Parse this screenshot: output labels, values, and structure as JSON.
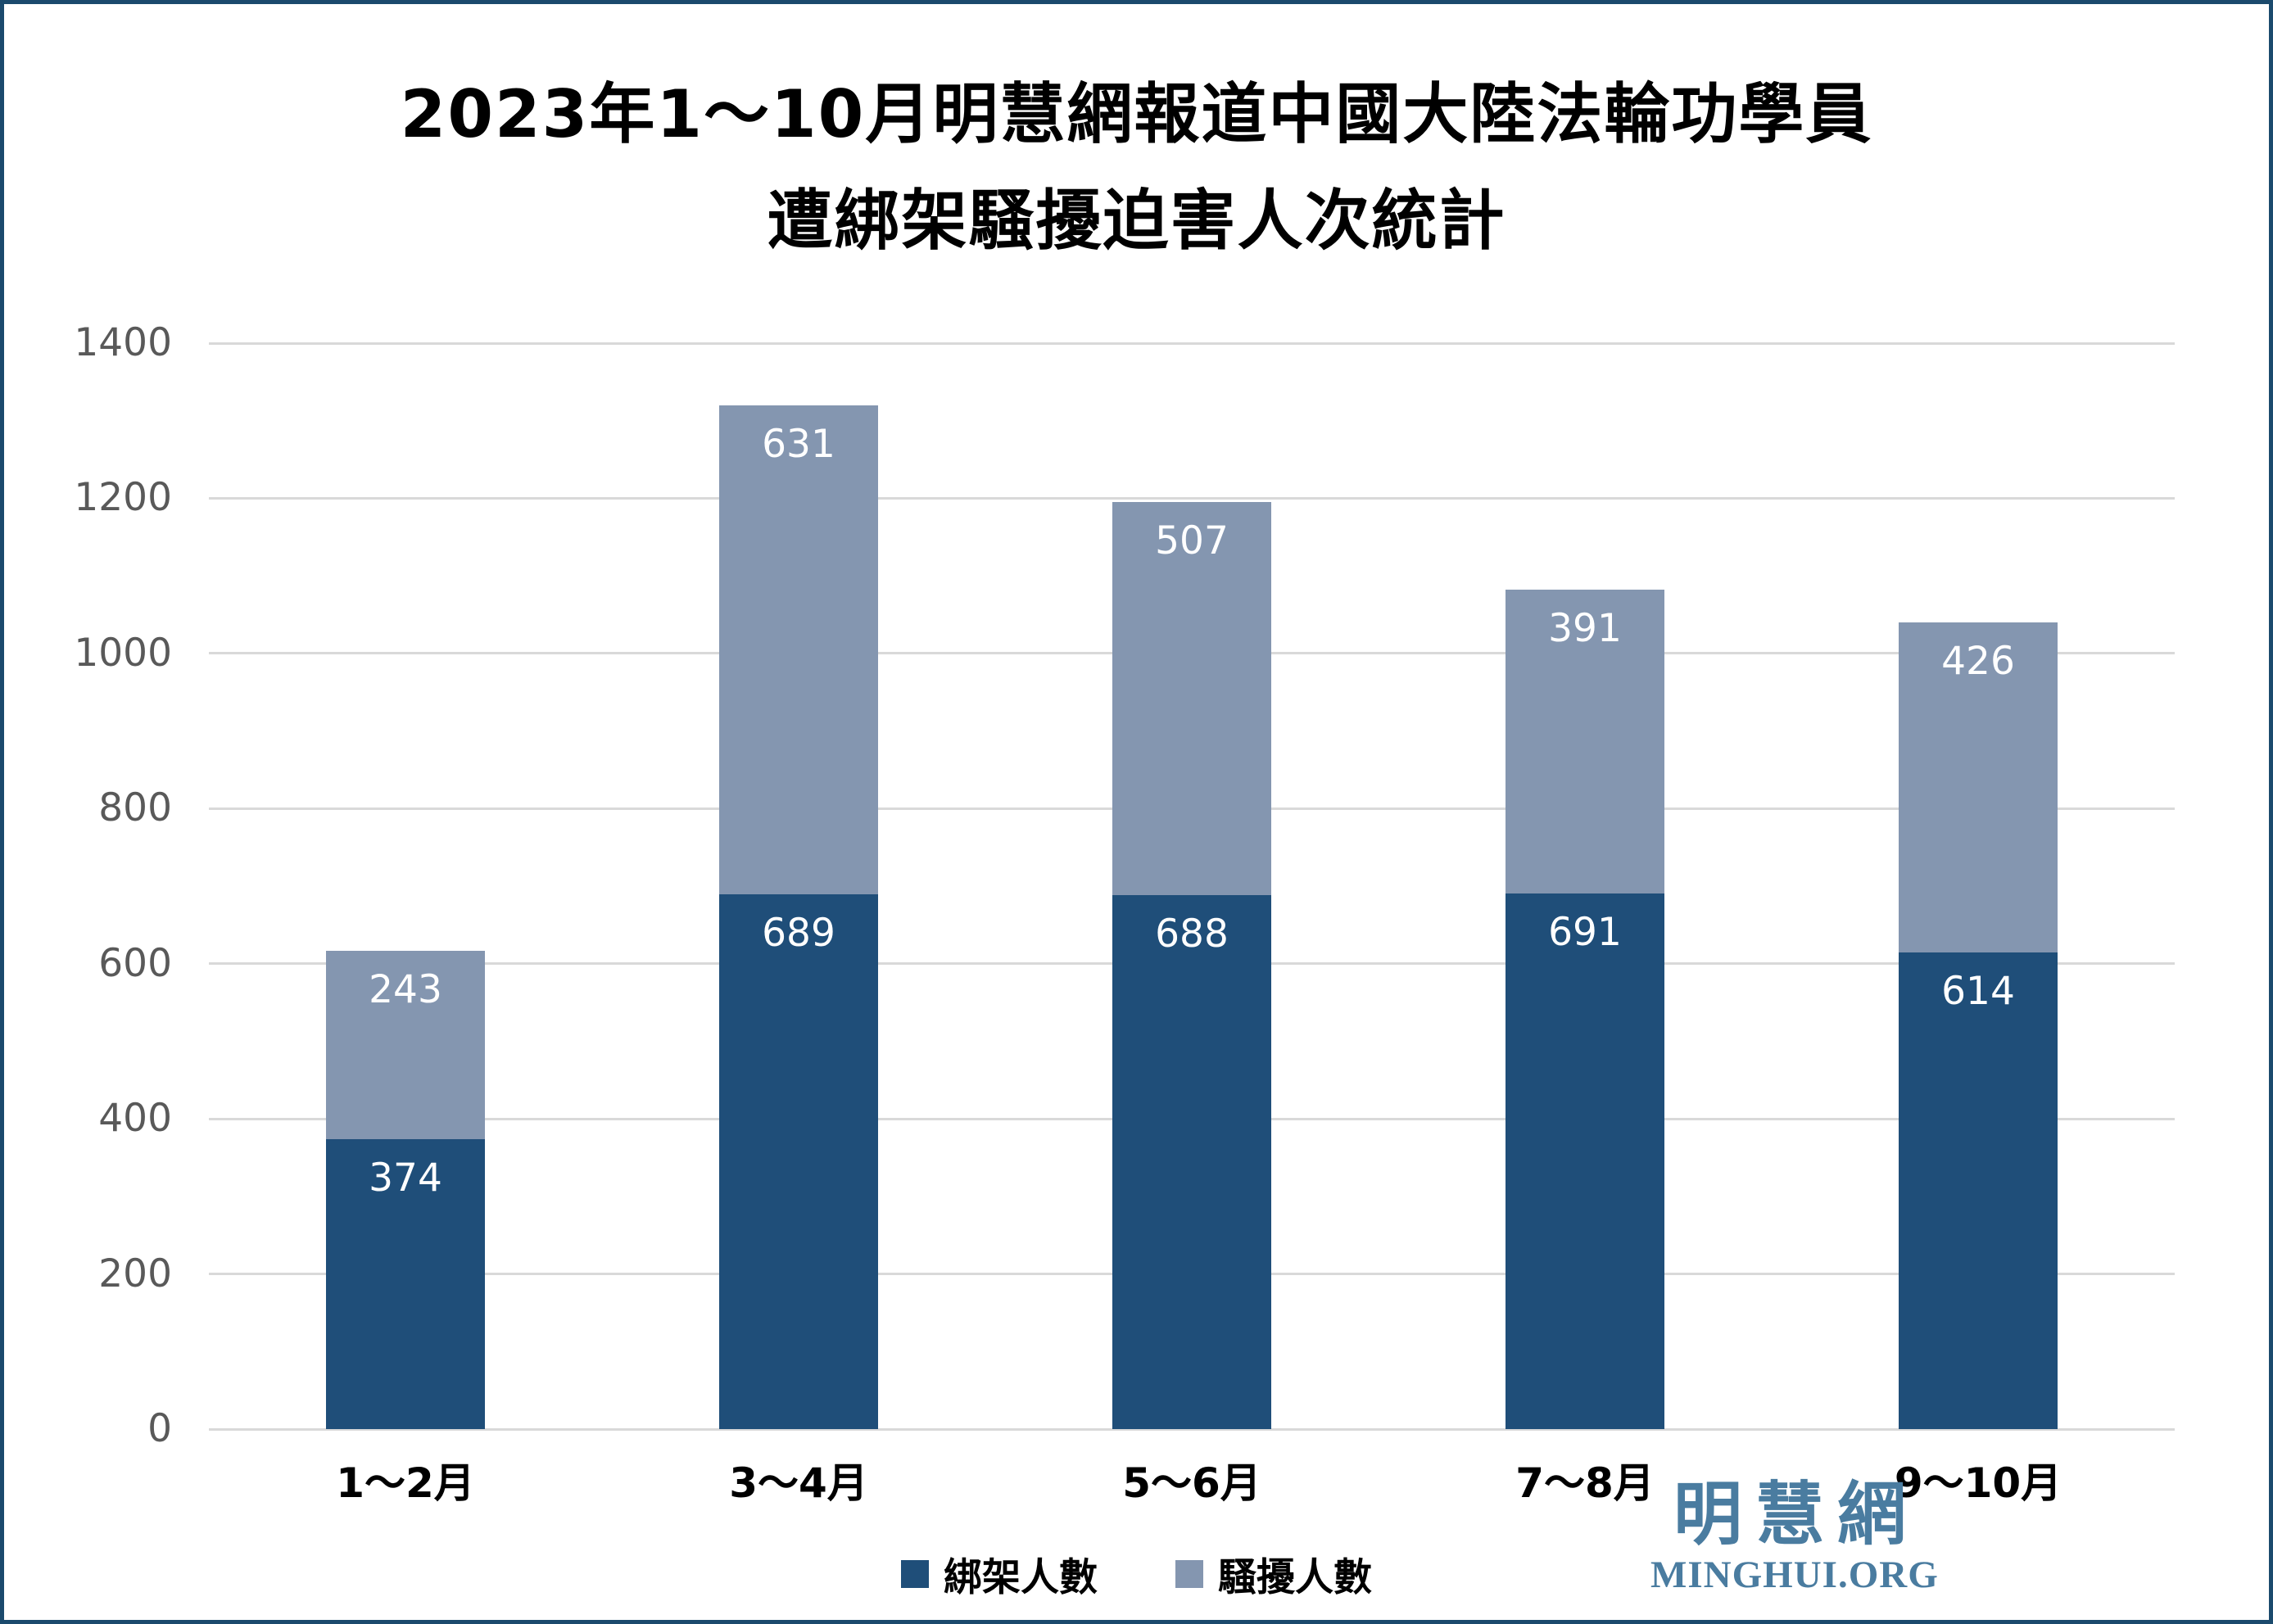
{
  "title": {
    "line1": "2023年1～10月明慧網報道中國大陸法輪功學員",
    "line2": "遭綁架騷擾迫害人次統計"
  },
  "chart_data": {
    "type": "bar",
    "stacked": true,
    "categories": [
      "1～2月",
      "3～4月",
      "5～6月",
      "7～8月",
      "9～10月"
    ],
    "series": [
      {
        "key": "kidnapped",
        "name": "綁架人數",
        "color": "#1F4E79",
        "values": [
          374,
          689,
          688,
          691,
          614
        ]
      },
      {
        "key": "harassed",
        "name": "騷擾人數",
        "color": "#8496B0",
        "values": [
          243,
          631,
          507,
          391,
          426
        ]
      }
    ],
    "stack_totals": [
      617,
      1320,
      1195,
      1082,
      1040
    ],
    "ylim": [
      0,
      1400
    ],
    "yticks": [
      0,
      200,
      400,
      600,
      800,
      1000,
      1200,
      1400
    ],
    "grid": true,
    "legend_position": "bottom",
    "value_labels": "inside-top"
  },
  "legend": {
    "items": [
      {
        "label": "綁架人數",
        "color": "#1F4E79"
      },
      {
        "label": "騷擾人數",
        "color": "#8496B0"
      }
    ]
  },
  "logo": {
    "chinese": "明慧網",
    "english": "MINGHUI.ORG"
  },
  "colors": {
    "bar_dark": "#1F4E79",
    "bar_light": "#8496B0",
    "gridline": "#D9D9D9",
    "axis_tick_label": "#595959",
    "value_label": "#FFFFFF",
    "category_label": "#000000",
    "frame_border": "#1B4A6D",
    "logo_blue": "#4A7CA0",
    "background": "#FFFFFF"
  }
}
